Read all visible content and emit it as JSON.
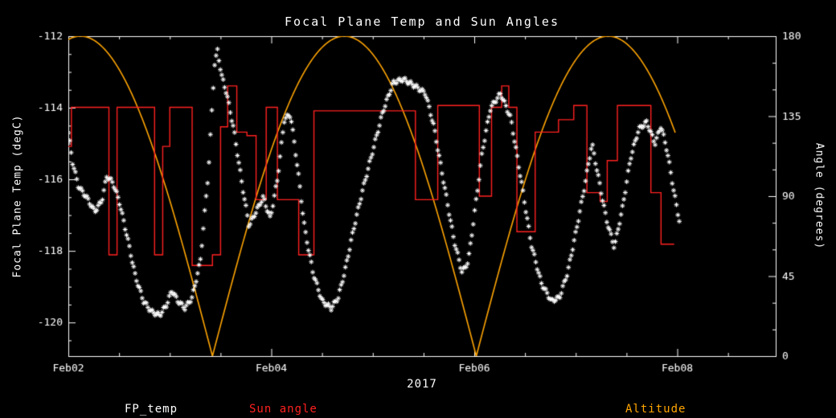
{
  "page": {
    "background": "#000000",
    "foreground": "#ffffff"
  },
  "title": "Focal Plane Temp and Sun Angles",
  "xlabel": "2017",
  "ylabel_left": "Focal Plane Temp (degC)",
  "ylabel_right": "Angle (degrees)",
  "legend": {
    "fp_temp": "FP_temp",
    "sun_angle": "Sun angle",
    "altitude": "Altitude"
  },
  "colors": {
    "fp_temp": "#ffffff",
    "sun_angle": "#ff2020",
    "altitude": "#ffa500",
    "axis": "#ffffff"
  },
  "chart_data": {
    "type": "line",
    "title": "Focal Plane Temp and Sun Angles",
    "x_axis": {
      "label": "2017",
      "tick_labels": [
        "Feb02",
        "Feb04",
        "Feb06",
        "Feb08"
      ],
      "tick_days": [
        0,
        2,
        4,
        6
      ],
      "range_days": [
        0,
        6.97
      ],
      "minor_step_days": 0.5
    },
    "y_left": {
      "label": "Focal Plane Temp (degC)",
      "ticks": [
        -112,
        -114,
        -116,
        -118,
        -120
      ],
      "range": [
        -120.94,
        -112
      ],
      "minor_step": 0.5
    },
    "y_right": {
      "label": "Angle (degrees)",
      "ticks": [
        0,
        45,
        90,
        135,
        180
      ],
      "range": [
        0,
        180
      ],
      "minor_step": 15
    },
    "series": [
      {
        "name": "FP_temp",
        "kind": "scatter",
        "marker": "asterisk",
        "color": "#ffffff",
        "axis": "left",
        "points": [
          [
            0.0,
            -114.7
          ],
          [
            0.04,
            -115.5
          ],
          [
            0.1,
            -116.2
          ],
          [
            0.18,
            -116.5
          ],
          [
            0.26,
            -116.9
          ],
          [
            0.33,
            -116.6
          ],
          [
            0.38,
            -115.9
          ],
          [
            0.44,
            -116.1
          ],
          [
            0.5,
            -116.6
          ],
          [
            0.58,
            -117.6
          ],
          [
            0.66,
            -118.7
          ],
          [
            0.74,
            -119.4
          ],
          [
            0.82,
            -119.7
          ],
          [
            0.9,
            -119.8
          ],
          [
            0.97,
            -119.5
          ],
          [
            1.02,
            -119.1
          ],
          [
            1.08,
            -119.4
          ],
          [
            1.15,
            -119.6
          ],
          [
            1.22,
            -119.3
          ],
          [
            1.3,
            -118.3
          ],
          [
            1.38,
            -115.8
          ],
          [
            1.44,
            -112.8
          ],
          [
            1.47,
            -112.4
          ],
          [
            1.51,
            -113.1
          ],
          [
            1.56,
            -113.6
          ],
          [
            1.63,
            -114.6
          ],
          [
            1.71,
            -116.1
          ],
          [
            1.78,
            -117.3
          ],
          [
            1.85,
            -116.9
          ],
          [
            1.92,
            -116.5
          ],
          [
            1.99,
            -117.1
          ],
          [
            2.06,
            -116.0
          ],
          [
            2.13,
            -114.3
          ],
          [
            2.19,
            -114.2
          ],
          [
            2.26,
            -115.7
          ],
          [
            2.33,
            -117.4
          ],
          [
            2.41,
            -118.6
          ],
          [
            2.5,
            -119.4
          ],
          [
            2.59,
            -119.6
          ],
          [
            2.66,
            -119.3
          ],
          [
            2.73,
            -118.5
          ],
          [
            2.81,
            -117.4
          ],
          [
            2.9,
            -116.3
          ],
          [
            3.0,
            -115.2
          ],
          [
            3.1,
            -114.1
          ],
          [
            3.2,
            -113.3
          ],
          [
            3.3,
            -113.2
          ],
          [
            3.42,
            -113.4
          ],
          [
            3.52,
            -113.6
          ],
          [
            3.6,
            -114.5
          ],
          [
            3.7,
            -116.1
          ],
          [
            3.8,
            -117.7
          ],
          [
            3.88,
            -118.6
          ],
          [
            3.94,
            -118.3
          ],
          [
            4.0,
            -117.0
          ],
          [
            4.08,
            -115.2
          ],
          [
            4.16,
            -114.0
          ],
          [
            4.26,
            -113.6
          ],
          [
            4.36,
            -114.3
          ],
          [
            4.46,
            -116.0
          ],
          [
            4.56,
            -117.8
          ],
          [
            4.66,
            -118.9
          ],
          [
            4.76,
            -119.4
          ],
          [
            4.84,
            -119.3
          ],
          [
            4.92,
            -118.6
          ],
          [
            5.0,
            -117.5
          ],
          [
            5.08,
            -116.3
          ],
          [
            5.16,
            -115.0
          ],
          [
            5.24,
            -116.2
          ],
          [
            5.3,
            -117.1
          ],
          [
            5.38,
            -117.9
          ],
          [
            5.46,
            -116.8
          ],
          [
            5.54,
            -115.4
          ],
          [
            5.62,
            -114.6
          ],
          [
            5.7,
            -114.4
          ],
          [
            5.78,
            -115.0
          ],
          [
            5.84,
            -114.5
          ],
          [
            5.9,
            -115.2
          ],
          [
            5.97,
            -116.4
          ],
          [
            6.03,
            -117.3
          ]
        ]
      },
      {
        "name": "Sun angle",
        "kind": "step",
        "color": "#ff2020",
        "axis": "right",
        "points": [
          [
            0.0,
            118
          ],
          [
            0.03,
            140
          ],
          [
            0.4,
            57
          ],
          [
            0.48,
            140
          ],
          [
            0.85,
            57
          ],
          [
            0.93,
            118
          ],
          [
            1.0,
            140
          ],
          [
            1.22,
            51
          ],
          [
            1.42,
            57
          ],
          [
            1.5,
            129
          ],
          [
            1.57,
            152
          ],
          [
            1.66,
            126
          ],
          [
            1.76,
            124
          ],
          [
            1.85,
            88
          ],
          [
            1.95,
            140
          ],
          [
            2.06,
            88
          ],
          [
            2.27,
            57
          ],
          [
            2.42,
            138
          ],
          [
            3.42,
            88
          ],
          [
            3.64,
            141
          ],
          [
            4.05,
            90
          ],
          [
            4.17,
            140
          ],
          [
            4.27,
            152
          ],
          [
            4.34,
            140
          ],
          [
            4.42,
            70
          ],
          [
            4.6,
            126
          ],
          [
            4.83,
            133
          ],
          [
            4.98,
            141
          ],
          [
            5.11,
            92
          ],
          [
            5.24,
            87
          ],
          [
            5.31,
            110
          ],
          [
            5.41,
            141
          ],
          [
            5.74,
            92
          ],
          [
            5.84,
            63
          ],
          [
            5.97,
            63
          ]
        ]
      },
      {
        "name": "Altitude",
        "kind": "line",
        "color": "#ffa500",
        "axis": "right",
        "model": {
          "kind": "abs_sine",
          "amplitude_deg": 180,
          "zero_day": 1.42,
          "half_period_days": 2.6,
          "t_start": 0,
          "t_end": 5.98,
          "zeros_days": [
            1.42,
            4.02
          ],
          "peaks_days": [
            0.12,
            2.72,
            5.32
          ]
        }
      }
    ]
  }
}
